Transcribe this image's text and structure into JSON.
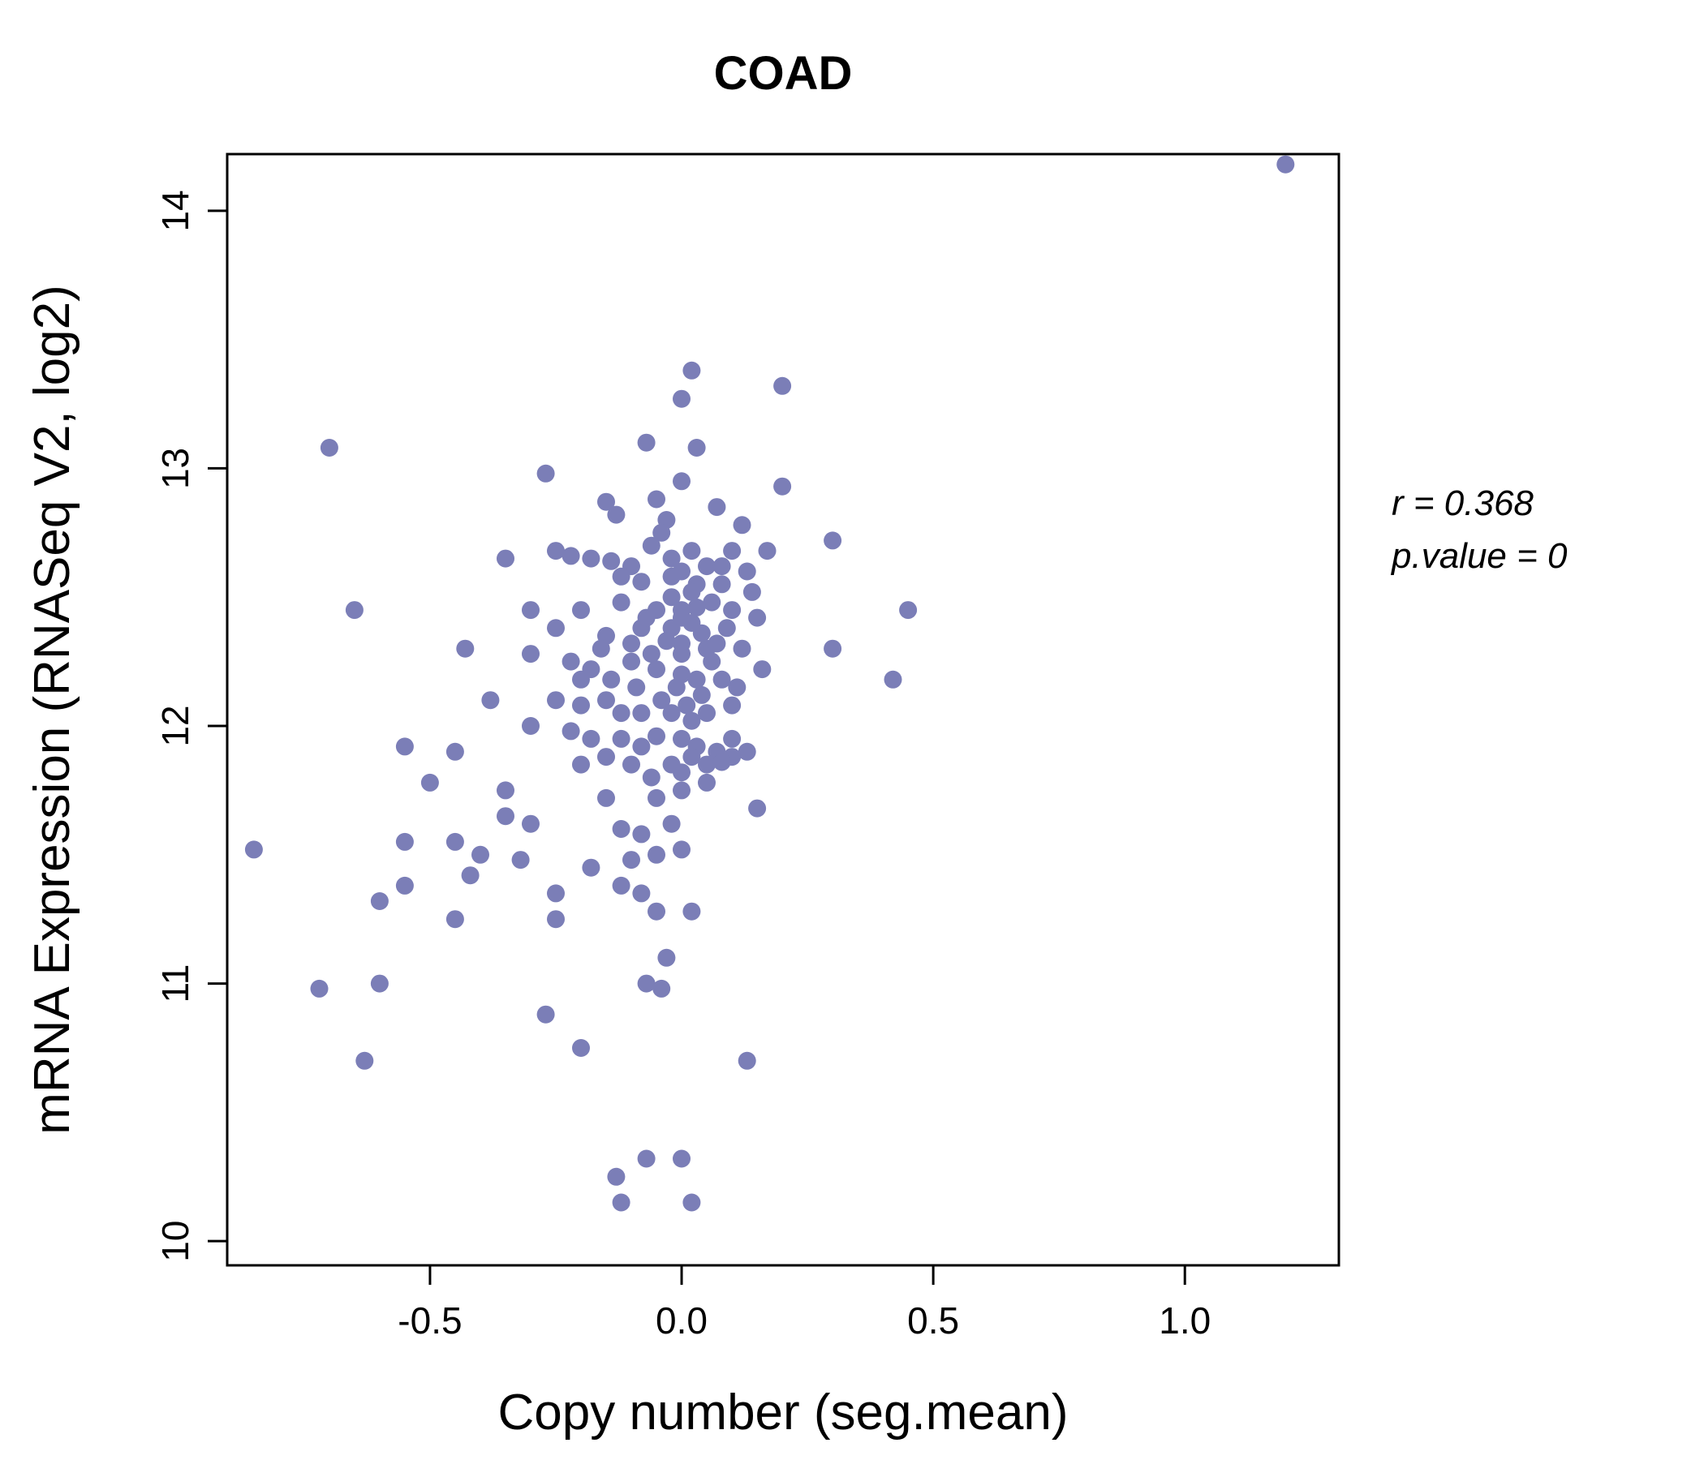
{
  "chart_data": {
    "type": "scatter",
    "title": "COAD",
    "xlabel": "Copy number (seg.mean)",
    "ylabel": "mRNA Expression (RNASeq V2, log2)",
    "xlim": [
      -0.903,
      1.306
    ],
    "ylim": [
      9.906,
      14.22
    ],
    "x_ticks": [
      {
        "value": -0.5,
        "label": "-0.5"
      },
      {
        "value": 0.0,
        "label": "0.0"
      },
      {
        "value": 0.5,
        "label": "0.5"
      },
      {
        "value": 1.0,
        "label": "1.0"
      }
    ],
    "y_ticks": [
      {
        "value": 10,
        "label": "10"
      },
      {
        "value": 11,
        "label": "11"
      },
      {
        "value": 12,
        "label": "12"
      },
      {
        "value": 13,
        "label": "13"
      },
      {
        "value": 14,
        "label": "14"
      }
    ],
    "annotation": {
      "r_label": "r = 0.368",
      "p_label": "p.value = 0"
    },
    "legend": "none",
    "grid": false,
    "colors": {
      "point": "#7b7eb7",
      "title": "#7577b7",
      "axis": "#000000"
    },
    "point_radius": 11,
    "points": [
      [
        1.2,
        14.18
      ],
      [
        0.02,
        13.38
      ],
      [
        0.2,
        13.32
      ],
      [
        0.0,
        13.27
      ],
      [
        -0.07,
        13.1
      ],
      [
        0.03,
        13.08
      ],
      [
        -0.7,
        13.08
      ],
      [
        -0.27,
        12.98
      ],
      [
        0.0,
        12.95
      ],
      [
        0.2,
        12.93
      ],
      [
        -0.05,
        12.88
      ],
      [
        -0.15,
        12.87
      ],
      [
        0.07,
        12.85
      ],
      [
        -0.13,
        12.82
      ],
      [
        -0.03,
        12.8
      ],
      [
        0.12,
        12.78
      ],
      [
        0.3,
        12.72
      ],
      [
        -0.04,
        12.75
      ],
      [
        -0.06,
        12.7
      ],
      [
        -0.35,
        12.65
      ],
      [
        -0.25,
        12.68
      ],
      [
        -0.22,
        12.66
      ],
      [
        -0.18,
        12.65
      ],
      [
        -0.14,
        12.64
      ],
      [
        -0.1,
        12.62
      ],
      [
        0.0,
        12.6
      ],
      [
        0.1,
        12.68
      ],
      [
        0.17,
        12.68
      ],
      [
        0.05,
        12.62
      ],
      [
        0.13,
        12.6
      ],
      [
        -0.08,
        12.56
      ],
      [
        0.03,
        12.55
      ],
      [
        -0.02,
        12.5
      ],
      [
        0.02,
        12.52
      ],
      [
        0.0,
        12.45
      ],
      [
        -0.05,
        12.45
      ],
      [
        -0.12,
        12.48
      ],
      [
        -0.2,
        12.45
      ],
      [
        -0.3,
        12.45
      ],
      [
        -0.65,
        12.45
      ],
      [
        0.45,
        12.45
      ],
      [
        0.1,
        12.45
      ],
      [
        0.15,
        12.42
      ],
      [
        0.02,
        12.4
      ],
      [
        -0.02,
        12.38
      ],
      [
        -0.08,
        12.38
      ],
      [
        -0.25,
        12.38
      ],
      [
        -0.15,
        12.35
      ],
      [
        0.0,
        12.32
      ],
      [
        0.05,
        12.3
      ],
      [
        0.12,
        12.3
      ],
      [
        0.3,
        12.3
      ],
      [
        -0.43,
        12.3
      ],
      [
        -0.3,
        12.28
      ],
      [
        -0.22,
        12.25
      ],
      [
        -0.18,
        12.22
      ],
      [
        -0.1,
        12.25
      ],
      [
        -0.05,
        12.22
      ],
      [
        0.0,
        12.2
      ],
      [
        0.03,
        12.18
      ],
      [
        0.08,
        12.18
      ],
      [
        0.42,
        12.18
      ],
      [
        -0.38,
        12.1
      ],
      [
        -0.25,
        12.1
      ],
      [
        -0.2,
        12.08
      ],
      [
        -0.15,
        12.1
      ],
      [
        -0.12,
        12.05
      ],
      [
        -0.08,
        12.05
      ],
      [
        -0.02,
        12.05
      ],
      [
        0.02,
        12.02
      ],
      [
        0.05,
        12.05
      ],
      [
        0.1,
        12.08
      ],
      [
        -0.3,
        12.0
      ],
      [
        -0.22,
        11.98
      ],
      [
        -0.55,
        11.92
      ],
      [
        -0.45,
        11.9
      ],
      [
        -0.18,
        11.95
      ],
      [
        -0.12,
        11.95
      ],
      [
        -0.08,
        11.92
      ],
      [
        -0.05,
        11.96
      ],
      [
        0.0,
        11.95
      ],
      [
        0.03,
        11.92
      ],
      [
        0.07,
        11.9
      ],
      [
        0.1,
        11.88
      ],
      [
        -0.15,
        11.88
      ],
      [
        -0.1,
        11.85
      ],
      [
        -0.02,
        11.85
      ],
      [
        0.02,
        11.88
      ],
      [
        0.05,
        11.85
      ],
      [
        0.08,
        11.86
      ],
      [
        -0.5,
        11.78
      ],
      [
        -0.35,
        11.75
      ],
      [
        -0.15,
        11.72
      ],
      [
        -0.05,
        11.72
      ],
      [
        0.0,
        11.75
      ],
      [
        0.15,
        11.68
      ],
      [
        -0.35,
        11.65
      ],
      [
        -0.3,
        11.62
      ],
      [
        -0.12,
        11.6
      ],
      [
        -0.08,
        11.58
      ],
      [
        -0.02,
        11.62
      ],
      [
        -0.45,
        11.55
      ],
      [
        -0.55,
        11.55
      ],
      [
        -0.85,
        11.52
      ],
      [
        -0.4,
        11.5
      ],
      [
        -0.32,
        11.48
      ],
      [
        -0.18,
        11.45
      ],
      [
        -0.1,
        11.48
      ],
      [
        -0.05,
        11.5
      ],
      [
        0.0,
        11.52
      ],
      [
        -0.42,
        11.42
      ],
      [
        -0.25,
        11.35
      ],
      [
        -0.55,
        11.38
      ],
      [
        -0.6,
        11.32
      ],
      [
        -0.12,
        11.38
      ],
      [
        -0.08,
        11.35
      ],
      [
        -0.45,
        11.25
      ],
      [
        -0.25,
        11.25
      ],
      [
        -0.05,
        11.28
      ],
      [
        0.02,
        11.28
      ],
      [
        -0.03,
        11.1
      ],
      [
        -0.72,
        10.98
      ],
      [
        -0.6,
        11.0
      ],
      [
        -0.07,
        11.0
      ],
      [
        -0.04,
        10.98
      ],
      [
        -0.27,
        10.88
      ],
      [
        -0.2,
        10.75
      ],
      [
        -0.63,
        10.7
      ],
      [
        0.13,
        10.7
      ],
      [
        -0.07,
        10.32
      ],
      [
        0.0,
        10.32
      ],
      [
        -0.13,
        10.25
      ],
      [
        -0.12,
        10.15
      ],
      [
        0.02,
        10.15
      ],
      [
        0.0,
        12.42
      ],
      [
        -0.03,
        12.33
      ],
      [
        0.04,
        12.36
      ],
      [
        -0.06,
        12.28
      ],
      [
        0.06,
        12.25
      ],
      [
        -0.01,
        12.15
      ],
      [
        0.04,
        12.12
      ],
      [
        -0.04,
        12.1
      ],
      [
        0.01,
        12.08
      ],
      [
        -0.09,
        12.15
      ],
      [
        0.07,
        12.32
      ],
      [
        0.09,
        12.38
      ],
      [
        -0.07,
        12.42
      ],
      [
        0.0,
        12.28
      ],
      [
        0.03,
        12.46
      ],
      [
        -0.1,
        12.32
      ],
      [
        -0.16,
        12.3
      ],
      [
        0.06,
        12.48
      ],
      [
        -0.02,
        12.58
      ],
      [
        0.08,
        12.55
      ],
      [
        -0.12,
        12.58
      ],
      [
        0.14,
        12.52
      ],
      [
        -0.2,
        12.18
      ],
      [
        0.16,
        12.22
      ],
      [
        0.11,
        12.15
      ],
      [
        -0.14,
        12.18
      ],
      [
        0.0,
        11.82
      ],
      [
        0.05,
        11.78
      ],
      [
        -0.06,
        11.8
      ],
      [
        0.1,
        11.95
      ],
      [
        0.13,
        11.9
      ],
      [
        -0.2,
        11.85
      ],
      [
        0.08,
        12.62
      ],
      [
        0.02,
        12.68
      ],
      [
        -0.02,
        12.65
      ]
    ]
  }
}
